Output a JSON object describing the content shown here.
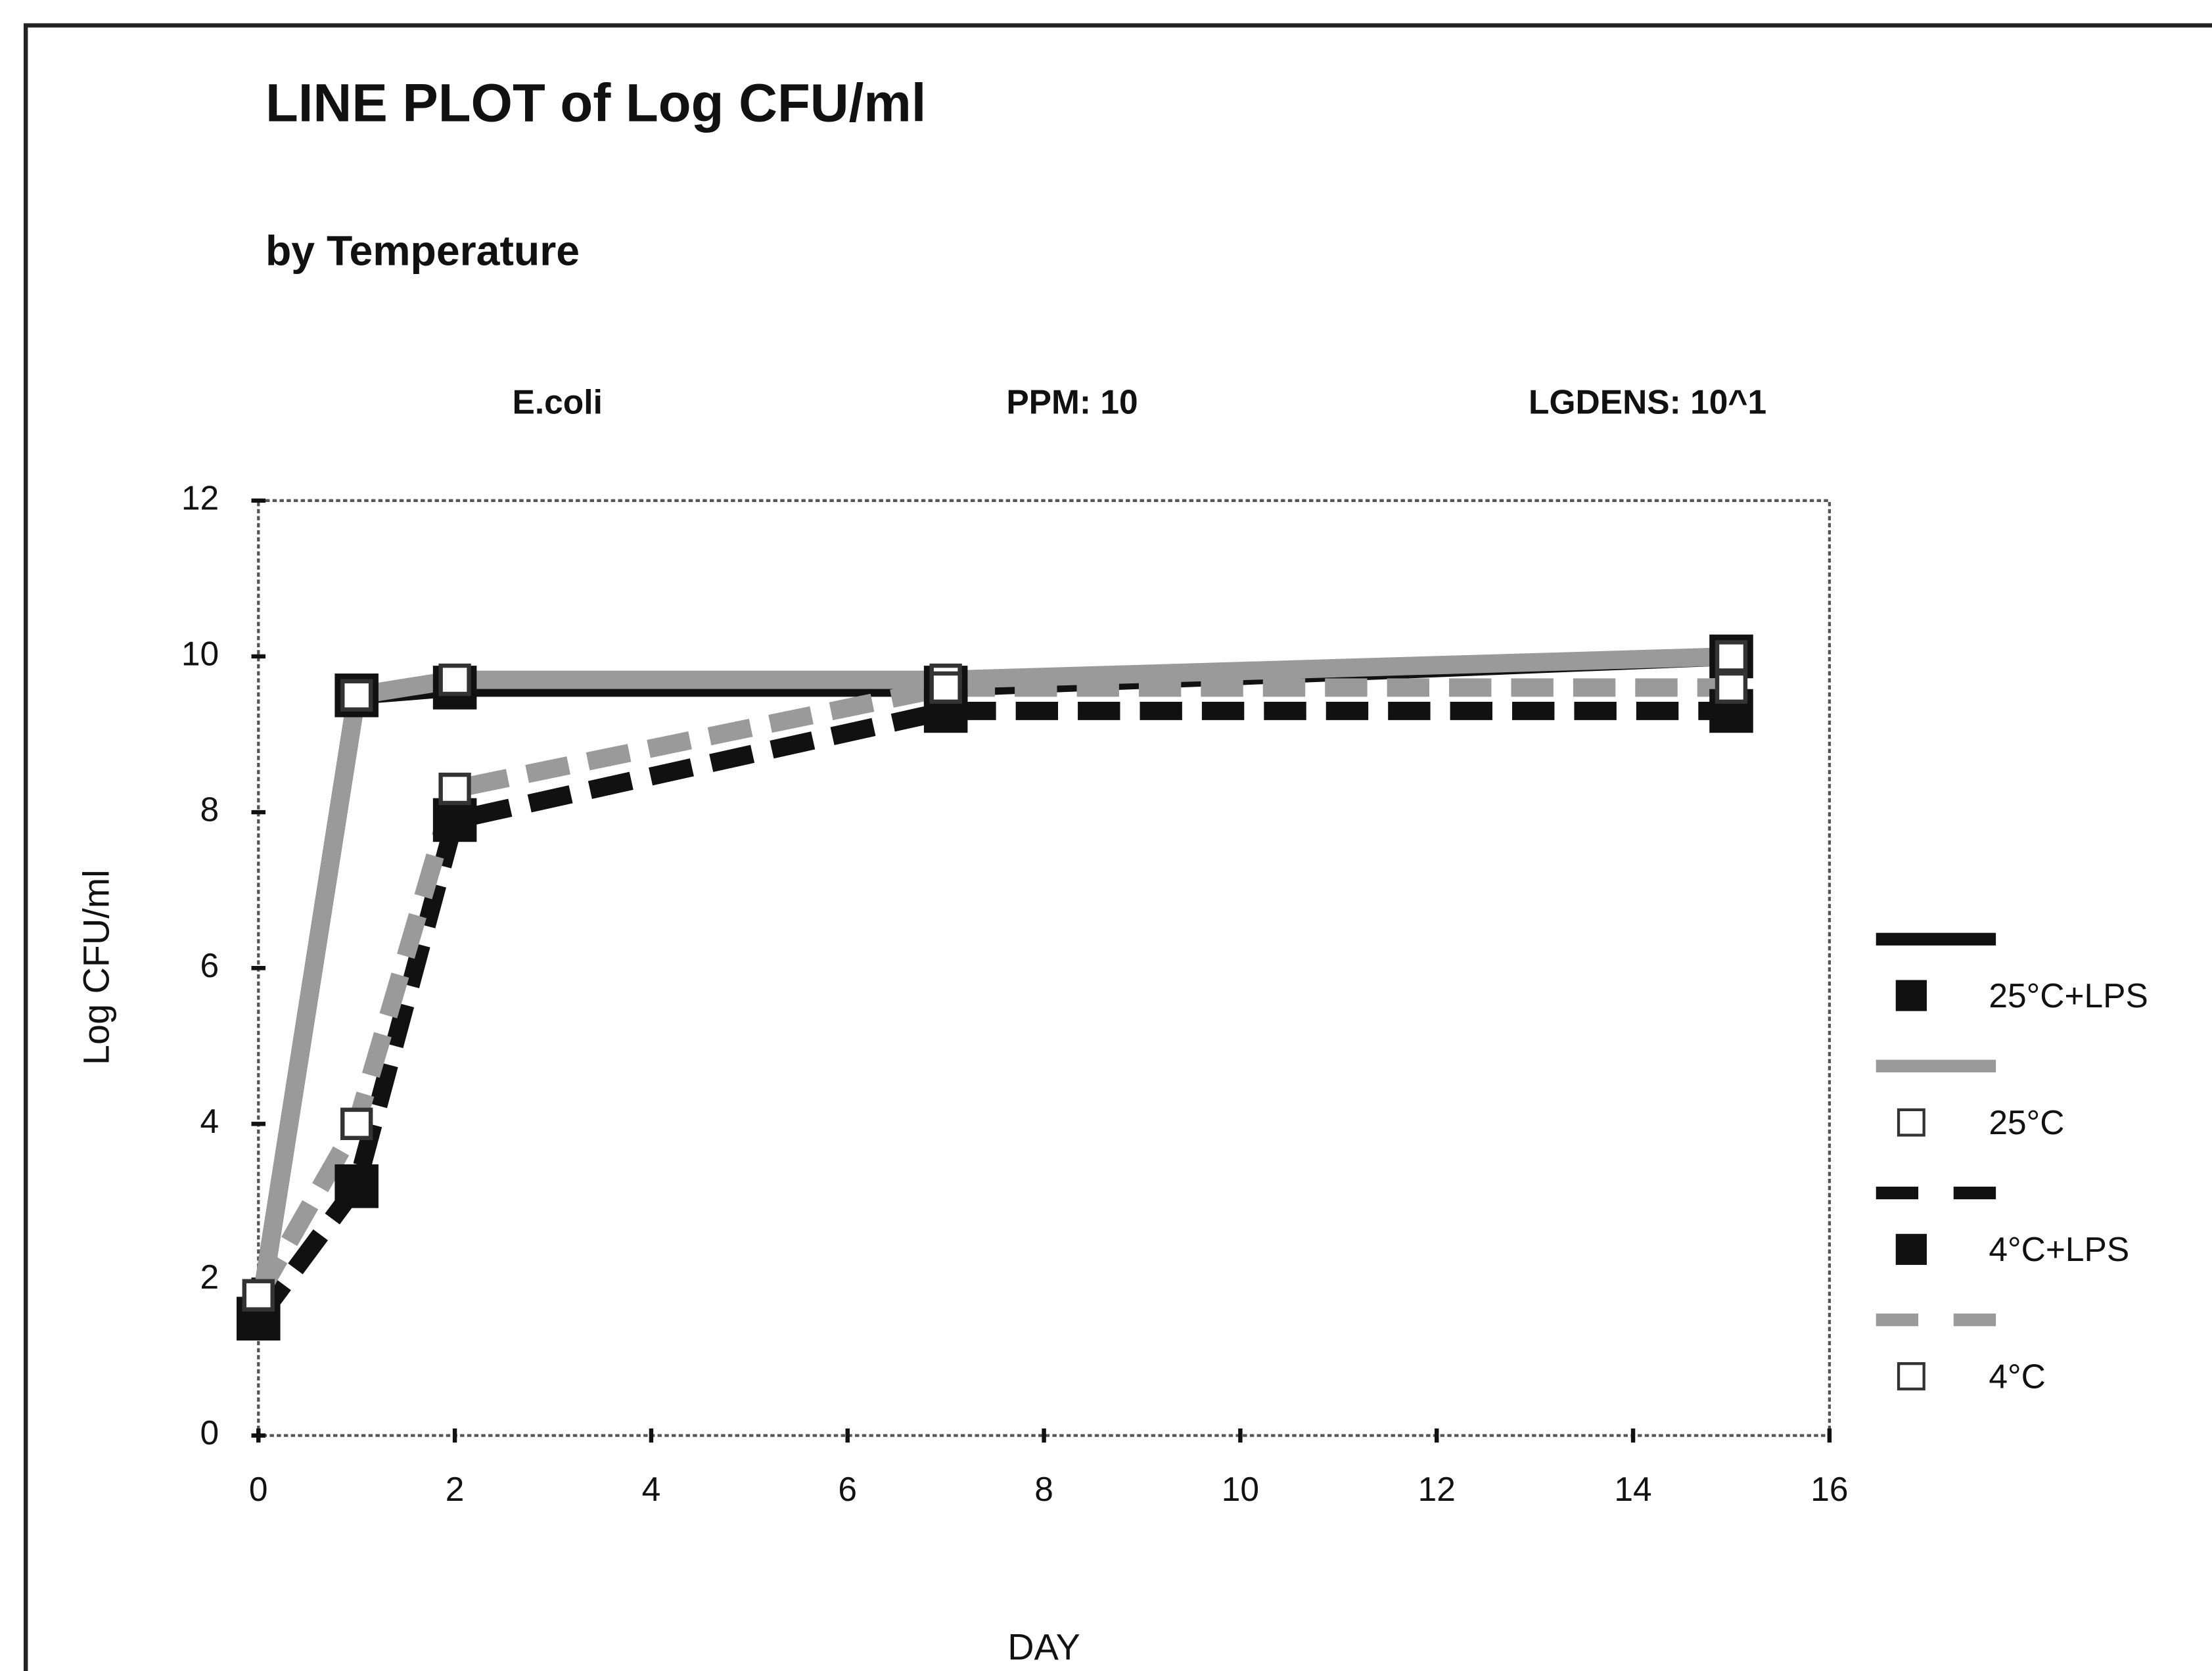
{
  "chart_data": {
    "type": "line",
    "title": "LINE PLOT of Log CFU/ml",
    "subtitle": "by Temperature",
    "annotations": [
      "E.coli",
      "PPM: 10",
      "LGDENS: 10^1"
    ],
    "xlabel": "DAY",
    "ylabel": "Log CFU/ml",
    "x": [
      0,
      1,
      2,
      7,
      15
    ],
    "xlim": [
      0,
      16
    ],
    "xticks": [
      0,
      2,
      4,
      6,
      8,
      10,
      12,
      14,
      16
    ],
    "ylim": [
      0,
      12
    ],
    "yticks": [
      0,
      2,
      4,
      6,
      8,
      10,
      12
    ],
    "series": [
      {
        "name": "25°C+LPS",
        "color": "#111111",
        "line_style": "solid",
        "marker": "filled",
        "values": [
          1.5,
          9.5,
          9.6,
          9.6,
          10.0
        ]
      },
      {
        "name": "25°C",
        "color": "#9a9a9a",
        "line_style": "solid",
        "marker": "open",
        "values": [
          1.5,
          9.5,
          9.7,
          9.7,
          10.0
        ]
      },
      {
        "name": "4°C+LPS",
        "color": "#111111",
        "line_style": "dashed",
        "marker": "filled",
        "values": [
          1.5,
          3.2,
          7.9,
          9.3,
          9.3
        ]
      },
      {
        "name": "4°C",
        "color": "#9a9a9a",
        "line_style": "dashed",
        "marker": "open",
        "values": [
          1.8,
          4.0,
          8.3,
          9.6,
          9.6
        ]
      }
    ]
  }
}
